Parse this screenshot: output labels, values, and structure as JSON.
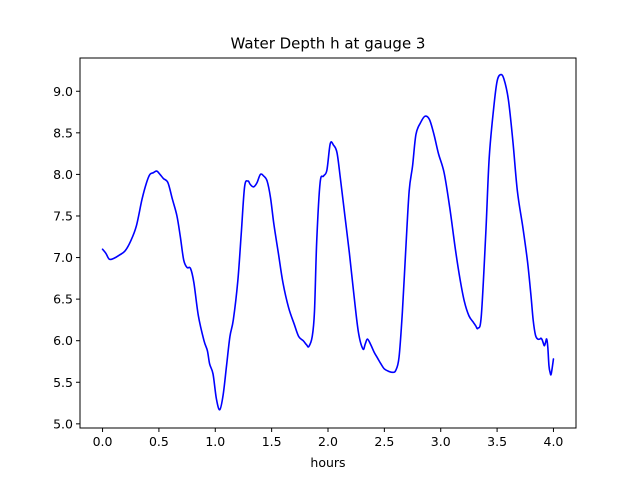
{
  "chart_data": {
    "type": "line",
    "title": "Water Depth h at gauge 3",
    "xlabel": "hours",
    "ylabel": "",
    "xlim": [
      -0.2,
      4.2
    ],
    "ylim": [
      4.95,
      9.4
    ],
    "xticks": [
      0.0,
      0.5,
      1.0,
      1.5,
      2.0,
      2.5,
      3.0,
      3.5,
      4.0
    ],
    "xtick_labels": [
      "0.0",
      "0.5",
      "1.0",
      "1.5",
      "2.0",
      "2.5",
      "3.0",
      "3.5",
      "4.0"
    ],
    "yticks": [
      5.0,
      5.5,
      6.0,
      6.5,
      7.0,
      7.5,
      8.0,
      8.5,
      9.0
    ],
    "ytick_labels": [
      "5.0",
      "5.5",
      "6.0",
      "6.5",
      "7.0",
      "7.5",
      "8.0",
      "8.5",
      "9.0"
    ],
    "grid": false,
    "series": [
      {
        "color": "#0000ff",
        "x": [
          0.0,
          0.03,
          0.06,
          0.1,
          0.15,
          0.2,
          0.25,
          0.3,
          0.35,
          0.39,
          0.42,
          0.45,
          0.48,
          0.51,
          0.54,
          0.58,
          0.62,
          0.66,
          0.69,
          0.72,
          0.75,
          0.78,
          0.81,
          0.85,
          0.9,
          0.93,
          0.95,
          0.98,
          1.01,
          1.04,
          1.07,
          1.1,
          1.13,
          1.16,
          1.2,
          1.23,
          1.26,
          1.29,
          1.31,
          1.34,
          1.37,
          1.4,
          1.43,
          1.46,
          1.49,
          1.52,
          1.56,
          1.6,
          1.65,
          1.7,
          1.74,
          1.78,
          1.81,
          1.83,
          1.86,
          1.88,
          1.9,
          1.93,
          1.96,
          1.99,
          2.02,
          2.05,
          2.08,
          2.11,
          2.15,
          2.19,
          2.23,
          2.27,
          2.31,
          2.33,
          2.35,
          2.38,
          2.41,
          2.44,
          2.47,
          2.5,
          2.54,
          2.57,
          2.6,
          2.63,
          2.66,
          2.69,
          2.72,
          2.75,
          2.78,
          2.82,
          2.86,
          2.9,
          2.94,
          2.98,
          3.03,
          3.08,
          3.13,
          3.17,
          3.21,
          3.25,
          3.29,
          3.31,
          3.33,
          3.36,
          3.4,
          3.43,
          3.47,
          3.5,
          3.53,
          3.56,
          3.6,
          3.64,
          3.68,
          3.73,
          3.77,
          3.8,
          3.82,
          3.84,
          3.86,
          3.88,
          3.89,
          3.9,
          3.91,
          3.92,
          3.93,
          3.94,
          3.95,
          3.96,
          3.97,
          3.98,
          4.0
        ],
        "y": [
          7.1,
          7.05,
          6.98,
          6.99,
          7.03,
          7.08,
          7.2,
          7.38,
          7.7,
          7.9,
          8.0,
          8.02,
          8.04,
          8.0,
          7.95,
          7.9,
          7.7,
          7.5,
          7.25,
          6.97,
          6.88,
          6.87,
          6.7,
          6.3,
          6.0,
          5.88,
          5.72,
          5.6,
          5.3,
          5.17,
          5.35,
          5.7,
          6.05,
          6.25,
          6.72,
          7.28,
          7.85,
          7.92,
          7.88,
          7.85,
          7.9,
          8.0,
          7.98,
          7.92,
          7.72,
          7.4,
          7.05,
          6.7,
          6.4,
          6.2,
          6.05,
          6.0,
          5.95,
          5.93,
          6.05,
          6.35,
          7.2,
          7.9,
          7.98,
          8.05,
          8.37,
          8.35,
          8.26,
          7.95,
          7.5,
          7.05,
          6.55,
          6.1,
          5.9,
          5.96,
          6.02,
          5.95,
          5.86,
          5.79,
          5.72,
          5.66,
          5.63,
          5.62,
          5.64,
          5.8,
          6.35,
          7.1,
          7.8,
          8.1,
          8.48,
          8.62,
          8.7,
          8.66,
          8.48,
          8.25,
          8.02,
          7.6,
          7.1,
          6.75,
          6.47,
          6.3,
          6.22,
          6.18,
          6.15,
          6.3,
          7.3,
          8.2,
          8.8,
          9.12,
          9.2,
          9.15,
          8.9,
          8.4,
          7.8,
          7.35,
          6.95,
          6.55,
          6.25,
          6.07,
          6.02,
          6.02,
          6.03,
          6.01,
          5.97,
          5.94,
          5.98,
          6.02,
          5.92,
          5.7,
          5.62,
          5.6,
          5.78
        ]
      }
    ]
  }
}
